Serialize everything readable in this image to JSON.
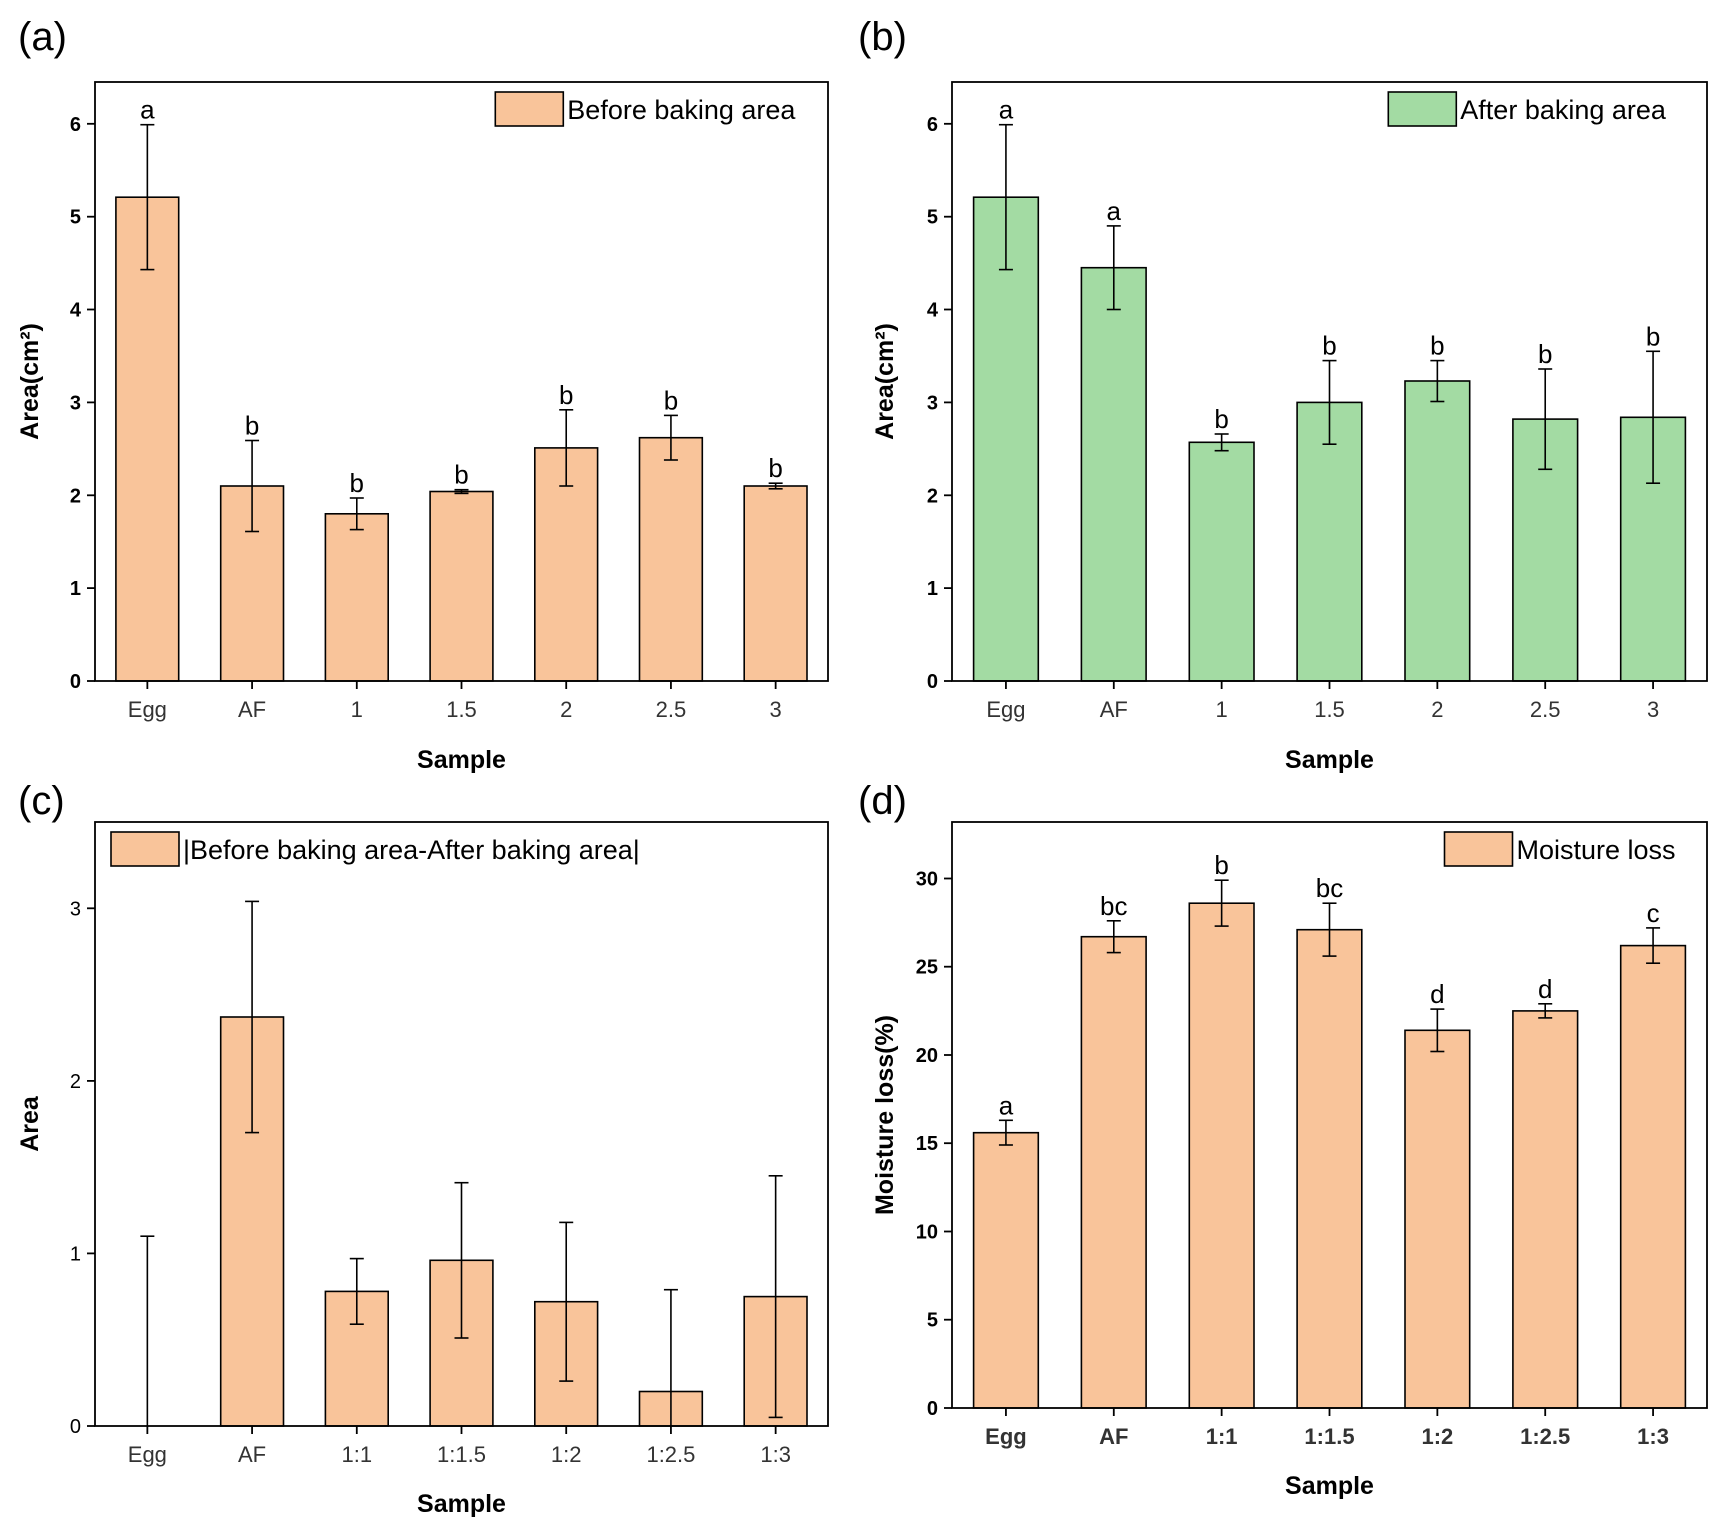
{
  "colors": {
    "orange": "#F9C49A",
    "green": "#A3DBA3",
    "axis": "#000000"
  },
  "chart_data": [
    {
      "panel_label": "(a)",
      "type": "bar",
      "categories": [
        "Egg",
        "AF",
        "1",
        "1.5",
        "2",
        "2.5",
        "3"
      ],
      "values": [
        5.21,
        2.1,
        1.8,
        2.04,
        2.51,
        2.62,
        2.1
      ],
      "errors": [
        0.78,
        0.49,
        0.17,
        0.02,
        0.41,
        0.24,
        0.03
      ],
      "letters": [
        "a",
        "b",
        "b",
        "b",
        "b",
        "b",
        "b"
      ],
      "legend": "Before baking area",
      "legend_position": "top-right",
      "ylabel": "Area(cm²)",
      "xlabel": "Sample",
      "ylim": [
        0,
        6.45
      ],
      "yticks": [
        "0",
        "1",
        "2",
        "3",
        "4",
        "5",
        "6"
      ],
      "tick_bold": true,
      "color": "orange"
    },
    {
      "panel_label": "(b)",
      "type": "bar",
      "categories": [
        "Egg",
        "AF",
        "1",
        "1.5",
        "2",
        "2.5",
        "3"
      ],
      "values": [
        5.21,
        4.45,
        2.57,
        3.0,
        3.23,
        2.82,
        2.84
      ],
      "errors": [
        0.78,
        0.45,
        0.09,
        0.45,
        0.22,
        0.54,
        0.71
      ],
      "letters": [
        "a",
        "a",
        "b",
        "b",
        "b",
        "b",
        "b"
      ],
      "legend": "After baking area",
      "legend_position": "top-right",
      "ylabel": "Area(cm²)",
      "xlabel": "Sample",
      "ylim": [
        0,
        6.45
      ],
      "yticks": [
        "0",
        "1",
        "2",
        "3",
        "4",
        "5",
        "6"
      ],
      "tick_bold": true,
      "color": "green"
    },
    {
      "panel_label": "(c)",
      "type": "bar",
      "categories": [
        "Egg",
        "AF",
        "1:1",
        "1:1.5",
        "1:2",
        "1:2.5",
        "1:3"
      ],
      "values": [
        0,
        2.37,
        0.78,
        0.96,
        0.72,
        0.2,
        0.75
      ],
      "errors": [
        1.1,
        0.67,
        0.19,
        0.45,
        0.46,
        0.59,
        0.7
      ],
      "letters": [],
      "legend": "|Before baking area-After baking area|",
      "legend_position": "top-left",
      "ylabel": "Area",
      "xlabel": "Sample",
      "ylim": [
        0,
        3.5
      ],
      "yticks": [
        "0",
        "1",
        "2",
        "3"
      ],
      "tick_bold": false,
      "color": "orange"
    },
    {
      "panel_label": "(d)",
      "type": "bar",
      "categories": [
        "Egg",
        "AF",
        "1:1",
        "1:1.5",
        "1:2",
        "1:2.5",
        "1:3"
      ],
      "values": [
        15.6,
        26.7,
        28.6,
        27.1,
        21.4,
        22.5,
        26.2
      ],
      "errors": [
        0.7,
        0.9,
        1.3,
        1.5,
        1.2,
        0.4,
        1.0
      ],
      "letters": [
        "a",
        "bc",
        "b",
        "bc",
        "d",
        "d",
        "c"
      ],
      "legend": "Moisture loss",
      "legend_position": "top-right",
      "ylabel": "Moisture loss(%)",
      "xlabel": "Sample",
      "ylim": [
        0,
        33.2
      ],
      "yticks": [
        "0",
        "5",
        "10",
        "15",
        "20",
        "25",
        "30"
      ],
      "tick_bold": true,
      "color": "orange"
    }
  ]
}
